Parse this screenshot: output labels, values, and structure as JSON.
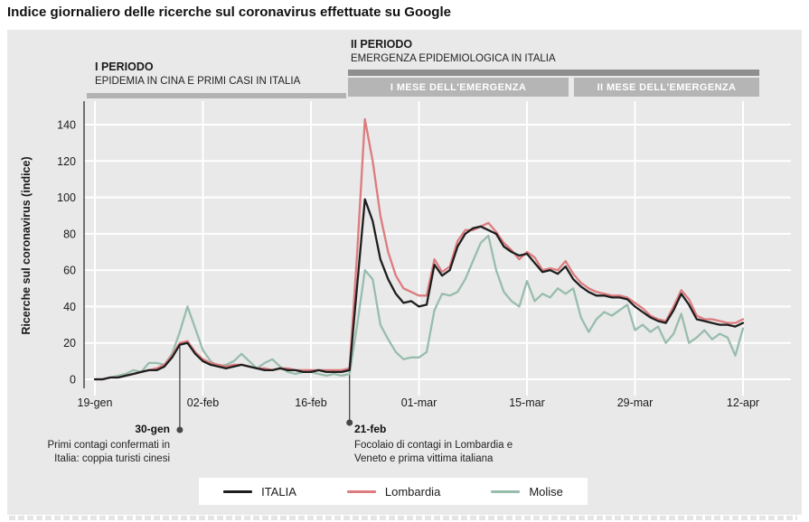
{
  "page": {
    "title": "Indice giornaliero delle ricerche sul coronavirus effettuate su Google"
  },
  "periods": {
    "period1": {
      "title": "I PERIODO",
      "subtitle": "EPIDEMIA IN CINA E PRIMI CASI IN ITALIA"
    },
    "period2": {
      "title": "II PERIODO",
      "subtitle": "EMERGENZA EPIDEMIOLOGICA IN ITALIA"
    },
    "month1_label": "I MESE DELL'EMERGENZA",
    "month2_label": "II MESE DELL'EMERGENZA"
  },
  "colors": {
    "panel_bg": "#e9e9e9",
    "gridline": "#ffffff",
    "axis_spine": "#3d3d3d",
    "annotation": "#474747",
    "period_bar_light": "#b2b2b2",
    "period_bar_dark": "#8f8f8f",
    "month_bar": "#b5b5b5",
    "italia": "#1e1e1e",
    "lombardia": "#dd7b7e",
    "molise": "#98bdac"
  },
  "legend": [
    {
      "label": "ITALIA",
      "color": "#1e1e1e"
    },
    {
      "label": "Lombardia",
      "color": "#dd7b7e"
    },
    {
      "label": "Molise",
      "color": "#98bdac"
    }
  ],
  "chart_data": {
    "type": "line",
    "title": "Indice giornaliero delle ricerche sul coronavirus effettuate su Google",
    "xlabel": "",
    "ylabel": "Ricerche sul coronavirus (indice)",
    "ylim": [
      0,
      150
    ],
    "yticks": [
      0,
      20,
      40,
      60,
      80,
      100,
      120,
      140
    ],
    "grid": true,
    "legend_position": "bottom",
    "x_tick_labels": [
      "19-gen",
      "02-feb",
      "16-feb",
      "01-mar",
      "15-mar",
      "29-mar",
      "12-apr"
    ],
    "x_tick_days": [
      0,
      14,
      28,
      42,
      56,
      70,
      84
    ],
    "dates": [
      "19-gen",
      "20-gen",
      "21-gen",
      "22-gen",
      "23-gen",
      "24-gen",
      "25-gen",
      "26-gen",
      "27-gen",
      "28-gen",
      "29-gen",
      "30-gen",
      "31-gen",
      "01-feb",
      "02-feb",
      "03-feb",
      "04-feb",
      "05-feb",
      "06-feb",
      "07-feb",
      "08-feb",
      "09-feb",
      "10-feb",
      "11-feb",
      "12-feb",
      "13-feb",
      "14-feb",
      "15-feb",
      "16-feb",
      "17-feb",
      "18-feb",
      "19-feb",
      "20-feb",
      "21-feb",
      "22-feb",
      "23-feb",
      "24-feb",
      "25-feb",
      "26-feb",
      "27-feb",
      "28-feb",
      "29-feb",
      "01-mar",
      "02-mar",
      "03-mar",
      "04-mar",
      "05-mar",
      "06-mar",
      "07-mar",
      "08-mar",
      "09-mar",
      "10-mar",
      "11-mar",
      "12-mar",
      "13-mar",
      "14-mar",
      "15-mar",
      "16-mar",
      "17-mar",
      "18-mar",
      "19-mar",
      "20-mar",
      "21-mar",
      "22-mar",
      "23-mar",
      "24-mar",
      "25-mar",
      "26-mar",
      "27-mar",
      "28-mar",
      "29-mar",
      "30-mar",
      "31-mar",
      "01-apr",
      "02-apr",
      "03-apr",
      "04-apr",
      "05-apr",
      "06-apr",
      "07-apr",
      "08-apr",
      "09-apr",
      "10-apr",
      "11-apr",
      "12-apr"
    ],
    "series": [
      {
        "name": "ITALIA",
        "color": "#1e1e1e",
        "values": [
          0,
          0,
          1,
          1,
          2,
          3,
          4,
          5,
          5,
          7,
          12,
          19,
          20,
          14,
          10,
          8,
          7,
          6,
          7,
          8,
          7,
          6,
          5,
          5,
          6,
          5,
          5,
          4,
          4,
          5,
          4,
          4,
          4,
          5,
          52,
          99,
          87,
          66,
          55,
          47,
          42,
          43,
          40,
          41,
          63,
          57,
          60,
          73,
          80,
          83,
          84,
          82,
          80,
          73,
          70,
          68,
          69,
          64,
          59,
          60,
          58,
          62,
          55,
          51,
          48,
          46,
          46,
          45,
          45,
          44,
          40,
          37,
          34,
          32,
          31,
          38,
          47,
          41,
          33,
          32,
          31,
          30,
          30,
          29,
          31
        ]
      },
      {
        "name": "Lombardia",
        "color": "#dd7b7e",
        "values": [
          0,
          0,
          1,
          1,
          2,
          3,
          4,
          5,
          6,
          8,
          13,
          20,
          21,
          15,
          11,
          9,
          8,
          7,
          8,
          8,
          7,
          6,
          6,
          5,
          6,
          6,
          5,
          5,
          5,
          5,
          5,
          5,
          5,
          6,
          70,
          143,
          120,
          90,
          70,
          57,
          50,
          48,
          46,
          46,
          66,
          59,
          62,
          76,
          82,
          82,
          84,
          86,
          81,
          75,
          71,
          66,
          70,
          67,
          60,
          61,
          60,
          65,
          58,
          53,
          50,
          48,
          47,
          46,
          46,
          45,
          42,
          39,
          35,
          33,
          32,
          40,
          49,
          44,
          35,
          33,
          33,
          32,
          31,
          31,
          33
        ]
      },
      {
        "name": "Molise",
        "color": "#98bdac",
        "values": [
          0,
          0,
          1,
          2,
          3,
          5,
          4,
          9,
          9,
          8,
          14,
          26,
          40,
          28,
          16,
          10,
          7,
          8,
          10,
          14,
          10,
          6,
          9,
          11,
          7,
          4,
          3,
          4,
          4,
          3,
          2,
          3,
          2,
          3,
          30,
          60,
          55,
          30,
          22,
          15,
          11,
          12,
          12,
          15,
          38,
          47,
          46,
          48,
          55,
          65,
          75,
          79,
          60,
          48,
          43,
          40,
          54,
          43,
          47,
          45,
          50,
          47,
          50,
          34,
          26,
          33,
          37,
          35,
          38,
          41,
          27,
          30,
          26,
          29,
          20,
          25,
          36,
          20,
          23,
          27,
          22,
          25,
          23,
          13,
          28
        ]
      }
    ],
    "annotations": [
      {
        "day": 11,
        "label": "30-gen",
        "align": "right",
        "lines": [
          "Primi contagi confermati in",
          "Italia: coppia turisti cinesi"
        ]
      },
      {
        "day": 33,
        "label": "21-feb",
        "align": "left",
        "lines": [
          "Focolaio di contagi in Lombardia e",
          "Veneto e prima vittima italiana"
        ]
      }
    ]
  }
}
